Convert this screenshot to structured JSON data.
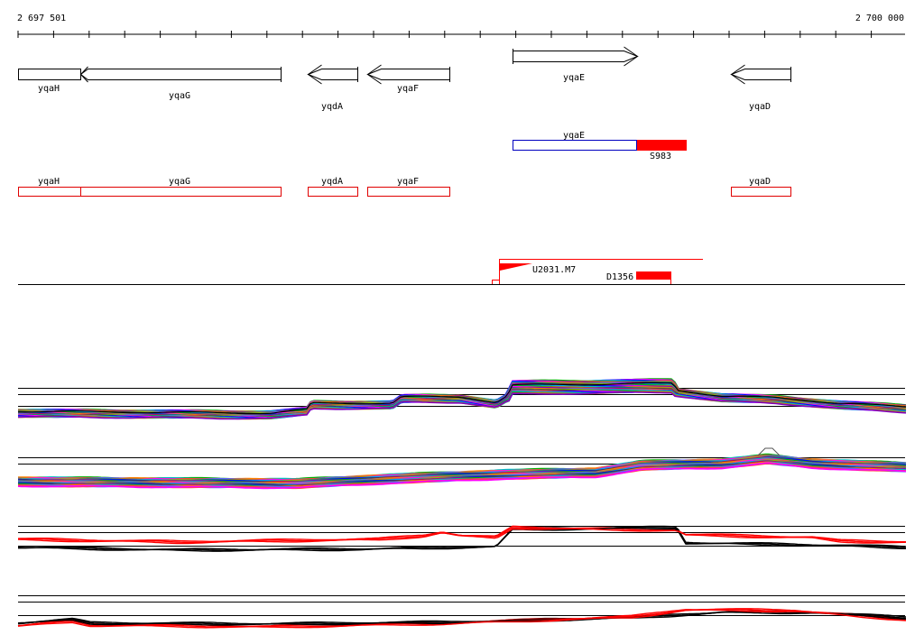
{
  "ruler": {
    "start_label": "2 697 501",
    "end_label": "2 700 000"
  },
  "genes": {
    "yqaH": "yqaH",
    "yqaG": "yqaG",
    "yqdA": "yqdA",
    "yqaF": "yqaF",
    "yqaE": "yqaE",
    "yqaD": "yqaD"
  },
  "features": {
    "s983": "S983",
    "u2031": "U2031.M7",
    "d1356": "D1356"
  },
  "colors": {
    "axis": "#000000",
    "gene_outline": "#000000",
    "gene_box": "#e00000",
    "transcript_box": "#0000c0",
    "feature_fill": "#ff0000",
    "profile_black": "#000000",
    "profile_red": "#ff0000",
    "profile_palette": [
      "#00b000",
      "#ff00ff",
      "#0000ff",
      "#00c0c0",
      "#c08000",
      "#8000c0",
      "#ff8000",
      "#008080",
      "#c00060",
      "#6060ff",
      "#80c000",
      "#404040",
      "#ff4040",
      "#00a0ff"
    ]
  },
  "icons": {
    "gene_arrow_right": "arrow-right-icon",
    "gene_arrow_left": "arrow-left-icon"
  }
}
